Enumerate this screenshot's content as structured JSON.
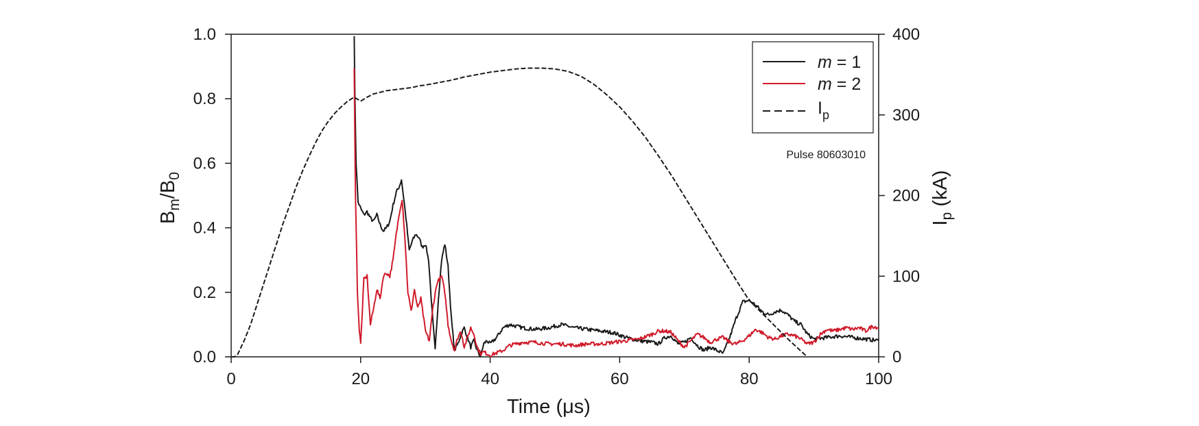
{
  "chart_data": {
    "type": "line",
    "title": "",
    "xlabel": "Time (μs)",
    "ylabel_left": {
      "main": "B",
      "sub1": "m",
      "mid": "/B",
      "sub2": "0"
    },
    "ylabel_right": {
      "main": "I",
      "sub": "p",
      "tail": " (kA)"
    },
    "xlim": [
      0,
      100
    ],
    "ylim_left": [
      0,
      1.0
    ],
    "ylim_right": [
      0,
      400
    ],
    "x_ticks": [
      "0",
      "20",
      "40",
      "60",
      "80",
      "100"
    ],
    "y_left_ticks": [
      "0.0",
      "0.2",
      "0.4",
      "0.6",
      "0.8",
      "1.0"
    ],
    "y_right_ticks": [
      "0",
      "100",
      "200",
      "300",
      "400"
    ],
    "grid": false,
    "legend_position": "top-right",
    "legend": [
      {
        "prefix": "",
        "italic": "m",
        "suffix": " = 1",
        "sub": "",
        "style": "solid",
        "color": "#1a1a1a"
      },
      {
        "prefix": "",
        "italic": "m",
        "suffix": " = 2",
        "sub": "",
        "style": "solid",
        "color": "#d01a2a"
      },
      {
        "prefix": "I",
        "italic": "",
        "suffix": "",
        "sub": "p",
        "style": "dashed",
        "color": "#1a1a1a"
      }
    ],
    "annotation": "Pulse 80603010",
    "series": [
      {
        "name": "m = 1",
        "axis": "left",
        "color": "#1a1a1a",
        "style": "solid",
        "x": [
          19.0,
          19.1,
          19.3,
          19.6,
          20.0,
          20.5,
          21.0,
          21.5,
          22.0,
          22.5,
          23.0,
          23.5,
          24.0,
          24.5,
          25.0,
          25.5,
          26.0,
          26.3,
          26.6,
          27.0,
          27.5,
          28.0,
          28.5,
          29.0,
          29.5,
          30.0,
          30.5,
          31.0,
          31.5,
          32.0,
          32.5,
          33.0,
          33.5,
          34.0,
          34.5,
          35.0,
          35.5,
          36.0,
          36.5,
          37.0,
          37.5,
          38.0,
          38.5,
          39.0,
          39.5,
          40.0,
          41.0,
          42.0,
          43.0,
          44.0,
          45.0,
          47.0,
          49.0,
          51.0,
          53.0,
          55.0,
          57.0,
          59.0,
          61.0,
          63.0,
          65.0,
          66.0,
          67.0,
          68.0,
          69.0,
          70.0,
          71.0,
          72.0,
          73.0,
          74.0,
          75.0,
          76.0,
          77.0,
          78.0,
          79.0,
          80.0,
          81.0,
          82.0,
          83.0,
          84.0,
          85.0,
          86.0,
          87.0,
          88.0,
          89.0,
          90.0,
          92.0,
          94.0,
          96.0,
          98.0,
          100.0
        ],
        "y": [
          1.0,
          0.82,
          0.6,
          0.48,
          0.46,
          0.44,
          0.45,
          0.43,
          0.42,
          0.44,
          0.41,
          0.39,
          0.4,
          0.42,
          0.47,
          0.51,
          0.53,
          0.55,
          0.5,
          0.43,
          0.33,
          0.36,
          0.38,
          0.37,
          0.34,
          0.35,
          0.3,
          0.15,
          0.02,
          0.18,
          0.3,
          0.35,
          0.28,
          0.12,
          0.02,
          0.04,
          0.07,
          0.09,
          0.06,
          0.03,
          0.05,
          0.02,
          0.0,
          0.04,
          0.05,
          0.04,
          0.06,
          0.09,
          0.1,
          0.095,
          0.09,
          0.085,
          0.09,
          0.1,
          0.09,
          0.085,
          0.08,
          0.075,
          0.06,
          0.05,
          0.045,
          0.04,
          0.06,
          0.065,
          0.04,
          0.045,
          0.06,
          0.035,
          0.02,
          0.03,
          0.02,
          0.01,
          0.06,
          0.12,
          0.17,
          0.175,
          0.16,
          0.14,
          0.13,
          0.14,
          0.145,
          0.13,
          0.11,
          0.1,
          0.07,
          0.055,
          0.06,
          0.065,
          0.06,
          0.055,
          0.05
        ]
      },
      {
        "name": "m = 2",
        "axis": "left",
        "color": "#d01a2a",
        "style": "solid",
        "x": [
          19.0,
          19.2,
          19.5,
          19.8,
          20.0,
          20.5,
          21.0,
          21.5,
          22.0,
          22.5,
          23.0,
          23.5,
          24.0,
          24.5,
          25.0,
          25.5,
          26.0,
          26.4,
          26.8,
          27.3,
          27.8,
          28.3,
          28.8,
          29.3,
          30.0,
          30.6,
          31.2,
          31.8,
          32.5,
          33.0,
          33.5,
          34.0,
          34.5,
          35.0,
          35.5,
          36.0,
          36.5,
          37.0,
          37.5,
          38.0,
          38.5,
          39.0,
          40.0,
          41.0,
          42.0,
          43.0,
          45.0,
          47.0,
          49.0,
          51.0,
          53.0,
          55.0,
          57.0,
          59.0,
          61.0,
          63.0,
          65.0,
          66.0,
          67.0,
          68.0,
          69.0,
          70.0,
          71.0,
          72.0,
          73.0,
          74.0,
          75.0,
          76.0,
          77.0,
          78.0,
          79.0,
          80.0,
          81.0,
          82.0,
          83.0,
          84.0,
          85.0,
          86.0,
          87.0,
          88.0,
          89.0,
          90.0,
          91.0,
          92.0,
          93.0,
          94.0,
          95.0,
          96.0,
          97.0,
          98.0,
          99.0,
          100.0
        ],
        "y": [
          0.9,
          0.5,
          0.2,
          0.08,
          0.04,
          0.24,
          0.25,
          0.1,
          0.15,
          0.21,
          0.18,
          0.25,
          0.26,
          0.25,
          0.3,
          0.38,
          0.45,
          0.49,
          0.38,
          0.2,
          0.14,
          0.21,
          0.15,
          0.18,
          0.08,
          0.05,
          0.16,
          0.23,
          0.25,
          0.2,
          0.1,
          0.05,
          0.02,
          0.06,
          0.08,
          0.03,
          0.06,
          0.09,
          0.07,
          0.03,
          0.01,
          0.015,
          0.005,
          0.012,
          0.02,
          0.035,
          0.045,
          0.045,
          0.04,
          0.04,
          0.035,
          0.04,
          0.04,
          0.045,
          0.05,
          0.055,
          0.07,
          0.08,
          0.08,
          0.075,
          0.05,
          0.03,
          0.05,
          0.07,
          0.06,
          0.045,
          0.055,
          0.06,
          0.045,
          0.04,
          0.05,
          0.065,
          0.085,
          0.075,
          0.06,
          0.055,
          0.065,
          0.07,
          0.065,
          0.055,
          0.04,
          0.045,
          0.07,
          0.085,
          0.08,
          0.085,
          0.09,
          0.085,
          0.09,
          0.08,
          0.095,
          0.09
        ]
      },
      {
        "name": "Ip",
        "axis": "right",
        "color": "#1a1a1a",
        "style": "dashed",
        "x": [
          0,
          0.5,
          1,
          2,
          3,
          4,
          5,
          6,
          7,
          8,
          9,
          10,
          11,
          12,
          13,
          14,
          15,
          16,
          17,
          18,
          19,
          20,
          21,
          22,
          23,
          24,
          25,
          26,
          27,
          28,
          29,
          30,
          32,
          34,
          36,
          38,
          40,
          42,
          44,
          46,
          48,
          50,
          52,
          54,
          56,
          58,
          60,
          62,
          64,
          66,
          68,
          70,
          72,
          74,
          76,
          78,
          80,
          82,
          84,
          86,
          88,
          89
        ],
        "y": [
          0,
          0,
          3,
          20,
          40,
          65,
          90,
          115,
          140,
          165,
          187,
          210,
          230,
          248,
          265,
          280,
          292,
          302,
          310,
          317,
          322,
          317,
          322,
          326,
          328,
          330,
          331,
          332,
          333,
          334,
          336,
          337,
          340,
          343,
          347,
          350,
          353,
          355,
          357,
          358,
          358,
          357,
          354,
          348,
          338,
          325,
          310,
          292,
          272,
          249,
          225,
          199,
          173,
          147,
          121,
          95,
          70,
          54,
          38,
          22,
          7,
          0
        ]
      }
    ]
  }
}
